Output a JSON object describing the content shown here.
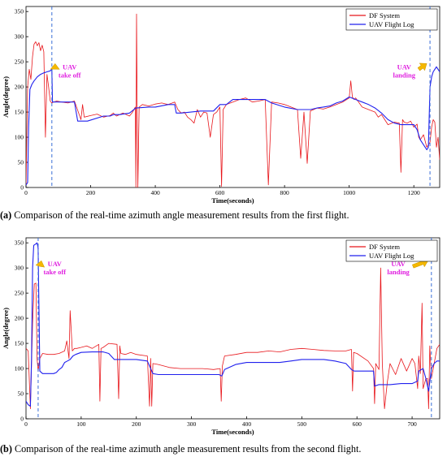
{
  "chart_data": [
    {
      "type": "line",
      "panel_label": "(a)",
      "caption": "Comparison of the real-time azimuth angle measurement results from the first flight.",
      "xlabel": "Time(seconds)",
      "ylabel": "Angle(degree)",
      "xlim": [
        0,
        1280
      ],
      "ylim": [
        0,
        360
      ],
      "xticks": [
        0,
        200,
        400,
        600,
        800,
        1000,
        1200
      ],
      "yticks": [
        0,
        50,
        100,
        150,
        200,
        250,
        300,
        350
      ],
      "legend": "top-right",
      "grid": false,
      "colors": {
        "df": "#e8161b",
        "uav": "#2020ee",
        "event": "#3a6fd8",
        "arrow": "#f5b800",
        "annotation": "#e020e0"
      },
      "vlines": [
        80,
        1250
      ],
      "annotations": [
        {
          "text": [
            "UAV",
            "take off"
          ],
          "x": 135,
          "y": 232
        },
        {
          "text": [
            "UAV",
            "landing"
          ],
          "x": 1170,
          "y": 232
        }
      ],
      "series": [
        {
          "name": "DF System",
          "key": "df",
          "x": [
            0,
            5,
            10,
            15,
            20,
            25,
            30,
            35,
            40,
            45,
            50,
            55,
            60,
            65,
            70,
            75,
            80,
            85,
            95,
            110,
            130,
            150,
            170,
            175,
            180,
            200,
            220,
            240,
            260,
            270,
            280,
            300,
            320,
            330,
            338,
            340,
            342,
            344,
            346,
            350,
            360,
            380,
            400,
            420,
            440,
            460,
            470,
            480,
            490,
            500,
            510,
            520,
            530,
            540,
            550,
            560,
            570,
            580,
            590,
            600,
            605,
            610,
            620,
            640,
            660,
            680,
            700,
            720,
            740,
            750,
            760,
            780,
            800,
            820,
            840,
            850,
            860,
            870,
            880,
            890,
            900,
            920,
            940,
            960,
            980,
            1000,
            1005,
            1010,
            1015,
            1020,
            1040,
            1060,
            1080,
            1090,
            1100,
            1110,
            1120,
            1140,
            1155,
            1160,
            1165,
            1170,
            1180,
            1190,
            1200,
            1210,
            1215,
            1220,
            1230,
            1240,
            1245,
            1250,
            1255,
            1260,
            1265,
            1270,
            1275,
            1280
          ],
          "y": [
            5,
            200,
            235,
            215,
            260,
            285,
            290,
            282,
            288,
            272,
            283,
            270,
            100,
            225,
            200,
            172,
            168,
            170,
            172,
            170,
            168,
            172,
            135,
            165,
            140,
            143,
            146,
            140,
            143,
            148,
            142,
            148,
            142,
            150,
            160,
            0,
            345,
            150,
            0,
            160,
            165,
            162,
            166,
            168,
            165,
            170,
            155,
            148,
            150,
            140,
            135,
            128,
            155,
            140,
            150,
            148,
            100,
            145,
            150,
            160,
            2,
            155,
            165,
            170,
            175,
            178,
            170,
            172,
            175,
            5,
            170,
            168,
            165,
            160,
            155,
            58,
            150,
            48,
            152,
            155,
            158,
            156,
            160,
            165,
            170,
            178,
            212,
            180,
            175,
            178,
            160,
            155,
            150,
            140,
            145,
            135,
            125,
            130,
            128,
            30,
            135,
            130,
            128,
            132,
            120,
            126,
            100,
            95,
            105,
            80,
            85,
            90,
            120,
            135,
            130,
            80,
            100,
            55
          ]
        },
        {
          "name": "UAV Flight Log",
          "key": "uav",
          "x": [
            0,
            5,
            8,
            12,
            18,
            25,
            35,
            45,
            55,
            65,
            75,
            80,
            82,
            85,
            90,
            120,
            150,
            160,
            190,
            240,
            260,
            270,
            290,
            320,
            340,
            380,
            400,
            440,
            460,
            465,
            480,
            540,
            560,
            580,
            600,
            620,
            640,
            700,
            740,
            760,
            800,
            840,
            880,
            900,
            920,
            940,
            960,
            980,
            1000,
            1020,
            1040,
            1060,
            1080,
            1100,
            1120,
            1140,
            1160,
            1180,
            1200,
            1210,
            1220,
            1240,
            1245,
            1250,
            1255,
            1260,
            1265,
            1270,
            1275,
            1280
          ],
          "y": [
            5,
            10,
            120,
            195,
            205,
            212,
            220,
            225,
            228,
            230,
            232,
            235,
            170,
            170,
            170,
            170,
            170,
            132,
            132,
            142,
            142,
            145,
            145,
            148,
            158,
            160,
            160,
            165,
            165,
            148,
            148,
            152,
            152,
            152,
            165,
            165,
            175,
            175,
            175,
            168,
            160,
            155,
            155,
            158,
            160,
            162,
            168,
            172,
            180,
            175,
            170,
            165,
            158,
            148,
            135,
            128,
            125,
            125,
            125,
            115,
            95,
            75,
            80,
            200,
            220,
            230,
            235,
            240,
            235,
            230
          ]
        }
      ]
    },
    {
      "type": "line",
      "panel_label": "(b)",
      "caption": "Comparison of the real-time azimuth angle measurement results from the second flight.",
      "xlabel": "Time(seconds)",
      "ylabel": "Angle(degree)",
      "xlim": [
        0,
        750
      ],
      "ylim": [
        0,
        360
      ],
      "xticks": [
        0,
        100,
        200,
        300,
        400,
        500,
        600,
        700
      ],
      "yticks": [
        0,
        50,
        100,
        150,
        200,
        250,
        300,
        350
      ],
      "legend": "top-right",
      "grid": false,
      "colors": {
        "df": "#e8161b",
        "uav": "#2020ee",
        "event": "#3a6fd8",
        "arrow": "#f5b800",
        "annotation": "#e020e0"
      },
      "vlines": [
        22,
        735
      ],
      "annotations": [
        {
          "text": [
            "UAV",
            "take off"
          ],
          "x": 52,
          "y": 300
        },
        {
          "text": [
            "UAV",
            "landing"
          ],
          "x": 675,
          "y": 300
        }
      ],
      "series": [
        {
          "name": "DF System",
          "key": "df",
          "x": [
            0,
            4,
            8,
            12,
            15,
            18,
            20,
            22,
            25,
            30,
            40,
            50,
            60,
            70,
            74,
            78,
            80,
            84,
            88,
            92,
            100,
            110,
            120,
            132,
            134,
            136,
            140,
            150,
            165,
            168,
            170,
            172,
            180,
            190,
            200,
            220,
            224,
            226,
            228,
            230,
            240,
            260,
            280,
            300,
            320,
            340,
            352,
            354,
            356,
            360,
            380,
            400,
            420,
            440,
            460,
            480,
            500,
            520,
            540,
            560,
            580,
            590,
            592,
            594,
            600,
            620,
            630,
            632,
            634,
            640,
            643,
            646,
            650,
            655,
            660,
            670,
            680,
            690,
            700,
            705,
            710,
            712,
            715,
            718,
            720,
            725,
            728,
            730,
            732,
            735,
            740,
            745,
            750
          ],
          "y": [
            140,
            135,
            20,
            190,
            268,
            270,
            120,
            95,
            120,
            130,
            128,
            128,
            130,
            135,
            155,
            120,
            215,
            135,
            140,
            140,
            142,
            145,
            140,
            148,
            35,
            140,
            142,
            150,
            148,
            40,
            145,
            130,
            128,
            132,
            128,
            125,
            25,
            120,
            25,
            110,
            108,
            102,
            100,
            100,
            100,
            98,
            100,
            35,
            105,
            125,
            128,
            132,
            132,
            135,
            133,
            138,
            140,
            138,
            136,
            135,
            135,
            138,
            55,
            132,
            130,
            115,
            100,
            30,
            110,
            98,
            300,
            110,
            20,
            72,
            110,
            88,
            120,
            95,
            120,
            110,
            60,
            125,
            90,
            230,
            60,
            80,
            80,
            20,
            145,
            80,
            110,
            140,
            148
          ]
        },
        {
          "name": "UAV Flight Log",
          "key": "uav",
          "x": [
            0,
            4,
            8,
            10,
            12,
            14,
            18,
            20,
            22,
            25,
            30,
            50,
            55,
            60,
            65,
            70,
            75,
            80,
            85,
            90,
            100,
            120,
            140,
            150,
            160,
            180,
            200,
            220,
            230,
            240,
            260,
            280,
            320,
            350,
            355,
            360,
            380,
            400,
            440,
            460,
            480,
            500,
            540,
            560,
            580,
            590,
            595,
            600,
            610,
            630,
            632,
            640,
            660,
            680,
            700,
            710,
            712,
            720,
            725,
            730,
            735,
            740,
            745,
            750
          ],
          "y": [
            35,
            28,
            25,
            120,
            300,
            345,
            348,
            350,
            340,
            95,
            90,
            90,
            92,
            98,
            102,
            112,
            115,
            118,
            125,
            128,
            132,
            133,
            133,
            130,
            118,
            118,
            118,
            115,
            90,
            88,
            88,
            88,
            88,
            88,
            85,
            98,
            108,
            112,
            112,
            112,
            115,
            118,
            118,
            115,
            110,
            98,
            95,
            95,
            95,
            95,
            65,
            68,
            68,
            70,
            70,
            75,
            95,
            100,
            80,
            55,
            100,
            110,
            115,
            115
          ]
        }
      ]
    }
  ]
}
